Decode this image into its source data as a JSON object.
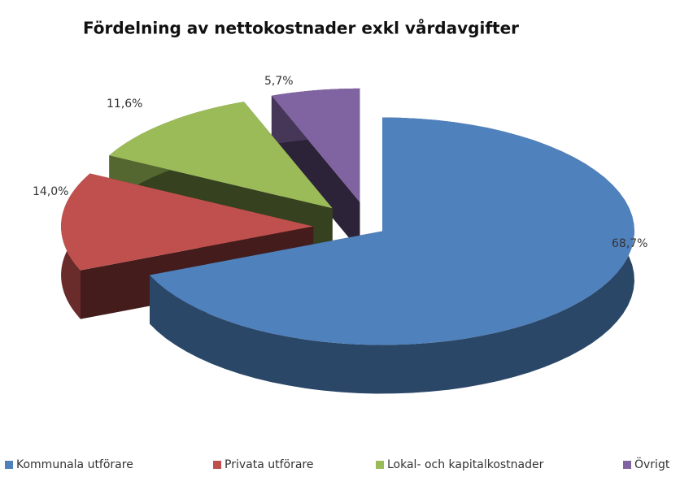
{
  "chart_data": {
    "type": "pie",
    "title": "Fördelning av nettokostnader exkl vårdavgifter",
    "categories": [
      "Kommunala utförare",
      "Privata utförare",
      "Lokal- och kapitalkostnader",
      "Övrigt"
    ],
    "values": [
      68.7,
      14.0,
      11.6,
      5.7
    ],
    "value_labels": [
      "68,7%",
      "14,0%",
      "11,6%",
      "5,7%"
    ],
    "colors": [
      "#4f81bd",
      "#c0504d",
      "#9bbb59",
      "#8064a2"
    ],
    "legend": "bottom"
  }
}
